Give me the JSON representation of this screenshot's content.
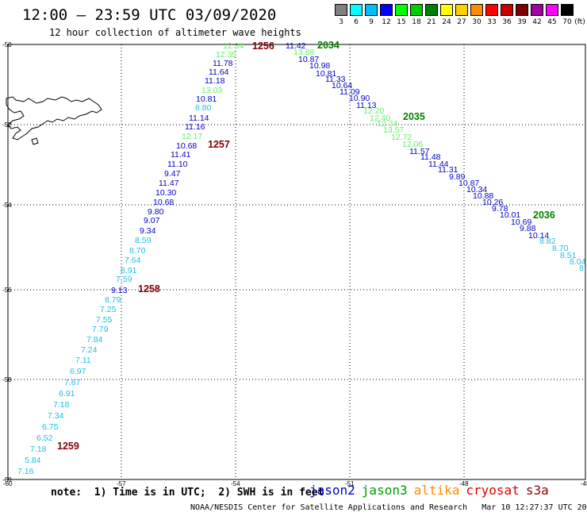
{
  "title": "12:00 – 23:59 UTC 03/09/2020",
  "subtitle": "12 hour collection of altimeter wave heights",
  "legend": {
    "unit": "(ft)",
    "bins": [
      {
        "label": "3",
        "color": "#808080"
      },
      {
        "label": "6",
        "color": "#00ffff"
      },
      {
        "label": "9",
        "color": "#00bfff"
      },
      {
        "label": "12",
        "color": "#0000ff"
      },
      {
        "label": "15",
        "color": "#00ff00"
      },
      {
        "label": "18",
        "color": "#00cc00"
      },
      {
        "label": "21",
        "color": "#008000"
      },
      {
        "label": "24",
        "color": "#ffff00"
      },
      {
        "label": "27",
        "color": "#ffd000"
      },
      {
        "label": "30",
        "color": "#ff8c00"
      },
      {
        "label": "33",
        "color": "#ff0000"
      },
      {
        "label": "36",
        "color": "#cc0000"
      },
      {
        "label": "39",
        "color": "#800000"
      },
      {
        "label": "42",
        "color": "#a000a0"
      },
      {
        "label": "45",
        "color": "#ff00ff"
      },
      {
        "label": "70",
        "color": "#000000"
      }
    ]
  },
  "axes": {
    "lat_labels": [
      "-50",
      "-52",
      "-54",
      "-56",
      "-58",
      "-60"
    ],
    "lon_labels": [
      "-60",
      "-57",
      "-54",
      "-51",
      "-48",
      "-45"
    ],
    "lat_range": [
      -60,
      -50
    ],
    "lon_range": [
      -60,
      -45
    ]
  },
  "tracks": [
    {
      "satellite": "track-1",
      "points": [
        {
          "v": "7.16",
          "c": "#1ec0e0"
        },
        {
          "v": "5.84",
          "c": "#1ec0e0"
        },
        {
          "v": "7.18",
          "c": "#1ec0e0"
        },
        {
          "v": "6.52",
          "c": "#1ec0e0"
        },
        {
          "v": "6.75",
          "c": "#1ec0e0"
        },
        {
          "v": "7.34",
          "c": "#1ec0e0"
        },
        {
          "v": "7.18",
          "c": "#1ec0e0"
        },
        {
          "v": "6.91",
          "c": "#1ec0e0"
        },
        {
          "v": "7.67",
          "c": "#1ec0e0"
        },
        {
          "v": "6.97",
          "c": "#1ec0e0"
        },
        {
          "v": "7.11",
          "c": "#1ec0e0"
        },
        {
          "v": "7.24",
          "c": "#1ec0e0"
        },
        {
          "v": "7.84",
          "c": "#1ec0e0"
        },
        {
          "v": "7.79",
          "c": "#1ec0e0"
        },
        {
          "v": "7.55",
          "c": "#1ec0e0"
        },
        {
          "v": "7.25",
          "c": "#1ec0e0"
        },
        {
          "v": "8.79",
          "c": "#1ec0e0"
        },
        {
          "v": "9.13",
          "c": "#0000c8"
        },
        {
          "v": "7.59",
          "c": "#1ec0e0"
        },
        {
          "v": "8.91",
          "c": "#1ec0e0"
        },
        {
          "v": "7.64",
          "c": "#1ec0e0"
        },
        {
          "v": "8.70",
          "c": "#1ec0e0"
        },
        {
          "v": "8.59",
          "c": "#1ec0e0"
        },
        {
          "v": "9.34",
          "c": "#0000c8"
        },
        {
          "v": "9.07",
          "c": "#0000c8"
        },
        {
          "v": "9.80",
          "c": "#0000c8"
        },
        {
          "v": "10.68",
          "c": "#0000c8"
        },
        {
          "v": "10.30",
          "c": "#0000c8"
        },
        {
          "v": "11.47",
          "c": "#0000c8"
        },
        {
          "v": "9.47",
          "c": "#0000c8"
        },
        {
          "v": "11.10",
          "c": "#0000c8"
        },
        {
          "v": "11.41",
          "c": "#0000c8"
        },
        {
          "v": "10.68",
          "c": "#0000c8"
        },
        {
          "v": "12.17",
          "c": "#66ee66"
        },
        {
          "v": "11.16",
          "c": "#0000c8"
        },
        {
          "v": "11.14",
          "c": "#0000c8"
        },
        {
          "v": "8.80",
          "c": "#1ec0e0"
        },
        {
          "v": "10.81",
          "c": "#0000c8"
        },
        {
          "v": "13.03",
          "c": "#66ee66"
        },
        {
          "v": "11.18",
          "c": "#0000c8"
        },
        {
          "v": "11.64",
          "c": "#0000c8"
        },
        {
          "v": "11.78",
          "c": "#0000c8"
        },
        {
          "v": "12.35",
          "c": "#66ee66"
        },
        {
          "v": "12.34",
          "c": "#66ee66"
        }
      ]
    },
    {
      "satellite": "track-2",
      "points": [
        {
          "v": "11.42",
          "c": "#0000c8"
        },
        {
          "v": "13.88",
          "c": "#66ee66"
        },
        {
          "v": "10.87",
          "c": "#0000c8"
        },
        {
          "v": "10.98",
          "c": "#0000c8"
        },
        {
          "v": "10.81",
          "c": "#0000c8"
        },
        {
          "v": "11.33",
          "c": "#0000c8"
        },
        {
          "v": "10.64",
          "c": "#0000c8"
        },
        {
          "v": "11.09",
          "c": "#0000c8"
        },
        {
          "v": "10.90",
          "c": "#0000c8"
        },
        {
          "v": "11.13",
          "c": "#0000c8"
        },
        {
          "v": "12.20",
          "c": "#66ee66"
        },
        {
          "v": "12.40",
          "c": "#66ee66"
        },
        {
          "v": "12.34",
          "c": "#66ee66"
        },
        {
          "v": "13.57",
          "c": "#66ee66"
        },
        {
          "v": "12.72",
          "c": "#66ee66"
        },
        {
          "v": "12.06",
          "c": "#66ee66"
        },
        {
          "v": "11.57",
          "c": "#0000c8"
        },
        {
          "v": "11.48",
          "c": "#0000c8"
        },
        {
          "v": "11.44",
          "c": "#0000c8"
        },
        {
          "v": "11.31",
          "c": "#0000c8"
        },
        {
          "v": "9.89",
          "c": "#0000c8"
        },
        {
          "v": "10.87",
          "c": "#0000c8"
        },
        {
          "v": "10.34",
          "c": "#0000c8"
        },
        {
          "v": "10.88",
          "c": "#0000c8"
        },
        {
          "v": "10.26",
          "c": "#0000c8"
        },
        {
          "v": "9.78",
          "c": "#0000c8"
        },
        {
          "v": "10.01",
          "c": "#0000c8"
        },
        {
          "v": "10.69",
          "c": "#0000c8"
        },
        {
          "v": "9.88",
          "c": "#0000c8"
        },
        {
          "v": "10.14",
          "c": "#0000c8"
        },
        {
          "v": "8.82",
          "c": "#1ec0e0"
        },
        {
          "v": "8.70",
          "c": "#1ec0e0"
        },
        {
          "v": "8.51",
          "c": "#1ec0e0"
        },
        {
          "v": "8.04",
          "c": "#1ec0e0"
        },
        {
          "v": "8",
          "c": "#1ec0e0"
        }
      ]
    }
  ],
  "time_labels": [
    {
      "text": "1256",
      "color": "#800000"
    },
    {
      "text": "1257",
      "color": "#800000"
    },
    {
      "text": "1258",
      "color": "#800000"
    },
    {
      "text": "1259",
      "color": "#800000"
    },
    {
      "text": "2034",
      "color": "#008000"
    },
    {
      "text": "2035",
      "color": "#008000"
    },
    {
      "text": "2036",
      "color": "#008000"
    }
  ],
  "note": "note:  1) Time is in UTC;  2) SWH is in feet",
  "satellites": [
    {
      "name": "jason2",
      "color": "#0000cc"
    },
    {
      "name": "jason3",
      "color": "#009900"
    },
    {
      "name": "altika",
      "color": "#ff8c00"
    },
    {
      "name": "cryosat",
      "color": "#dd0000"
    },
    {
      "name": "s3a",
      "color": "#880000"
    }
  ],
  "credit": "NOAA/NESDIS Center for Satellite Applications and Research   Mar 10 12:27:37 UTC 2020"
}
